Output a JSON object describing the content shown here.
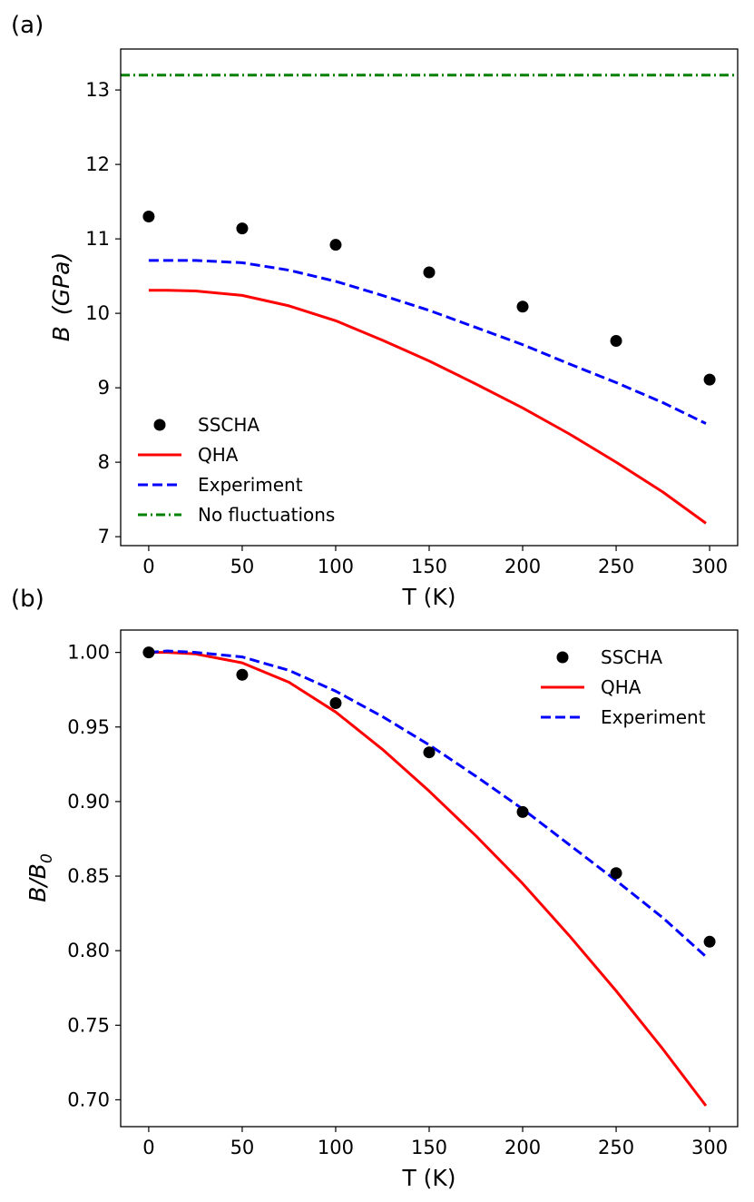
{
  "chart_data": [
    {
      "panel_label": "(a)",
      "type": "line",
      "xlabel": "T (K)",
      "ylabel_main": "B",
      "ylabel_unit": "(GPa)",
      "xlim": [
        -15,
        315
      ],
      "ylim": [
        6.88,
        13.55
      ],
      "xticks": [
        0,
        50,
        100,
        150,
        200,
        250,
        300
      ],
      "yticks": [
        7,
        8,
        9,
        10,
        11,
        12,
        13
      ],
      "xtick_labels": [
        "0",
        "50",
        "100",
        "150",
        "200",
        "250",
        "300"
      ],
      "ytick_labels": [
        "7",
        "8",
        "9",
        "10",
        "11",
        "12",
        "13"
      ],
      "legend_position": "lower-left",
      "series": [
        {
          "name": "SSCHA",
          "style": "markers",
          "color": "#000000",
          "x": [
            0,
            50,
            100,
            150,
            200,
            250,
            300
          ],
          "y": [
            11.3,
            11.14,
            10.92,
            10.55,
            10.09,
            9.63,
            9.11
          ]
        },
        {
          "name": "QHA",
          "style": "solid",
          "color": "#ff0000",
          "x": [
            0,
            10,
            25,
            50,
            75,
            100,
            125,
            150,
            175,
            200,
            225,
            250,
            275,
            298
          ],
          "y": [
            10.31,
            10.31,
            10.3,
            10.24,
            10.1,
            9.9,
            9.64,
            9.36,
            9.05,
            8.73,
            8.38,
            8.0,
            7.6,
            7.18
          ]
        },
        {
          "name": "Experiment",
          "style": "dashed",
          "color": "#0000ff",
          "x": [
            0,
            10,
            25,
            50,
            75,
            100,
            125,
            150,
            175,
            200,
            225,
            250,
            275,
            298
          ],
          "y": [
            10.71,
            10.71,
            10.71,
            10.68,
            10.58,
            10.43,
            10.24,
            10.04,
            9.81,
            9.58,
            9.32,
            9.07,
            8.8,
            8.52
          ]
        },
        {
          "name": "No fluctuations",
          "style": "dashdot",
          "color": "#008000",
          "x": [
            -15,
            315
          ],
          "y": [
            13.2,
            13.2
          ]
        }
      ]
    },
    {
      "panel_label": "(b)",
      "type": "line",
      "xlabel": "T (K)",
      "ylabel_main": "B/B",
      "ylabel_sub": "0",
      "xlim": [
        -15,
        315
      ],
      "ylim": [
        0.682,
        1.015
      ],
      "xticks": [
        0,
        50,
        100,
        150,
        200,
        250,
        300
      ],
      "yticks": [
        0.7,
        0.75,
        0.8,
        0.85,
        0.9,
        0.95,
        1.0
      ],
      "xtick_labels": [
        "0",
        "50",
        "100",
        "150",
        "200",
        "250",
        "300"
      ],
      "ytick_labels": [
        "0.70",
        "0.75",
        "0.80",
        "0.85",
        "0.90",
        "0.95",
        "1.00"
      ],
      "legend_position": "upper-right",
      "series": [
        {
          "name": "SSCHA",
          "style": "markers",
          "color": "#000000",
          "x": [
            0,
            50,
            100,
            150,
            200,
            250,
            300
          ],
          "y": [
            1.0,
            0.985,
            0.966,
            0.933,
            0.893,
            0.852,
            0.806
          ]
        },
        {
          "name": "QHA",
          "style": "solid",
          "color": "#ff0000",
          "x": [
            0,
            10,
            25,
            50,
            75,
            100,
            125,
            150,
            175,
            200,
            225,
            250,
            275,
            298
          ],
          "y": [
            1.0,
            1.0,
            0.999,
            0.993,
            0.98,
            0.96,
            0.935,
            0.907,
            0.877,
            0.845,
            0.81,
            0.773,
            0.734,
            0.696
          ]
        },
        {
          "name": "Experiment",
          "style": "dashed",
          "color": "#0000ff",
          "x": [
            0,
            10,
            25,
            50,
            75,
            100,
            125,
            150,
            175,
            200,
            225,
            250,
            275,
            298
          ],
          "y": [
            1.0,
            1.001,
            1.0,
            0.997,
            0.988,
            0.974,
            0.957,
            0.938,
            0.917,
            0.895,
            0.871,
            0.847,
            0.822,
            0.796
          ]
        }
      ]
    }
  ]
}
